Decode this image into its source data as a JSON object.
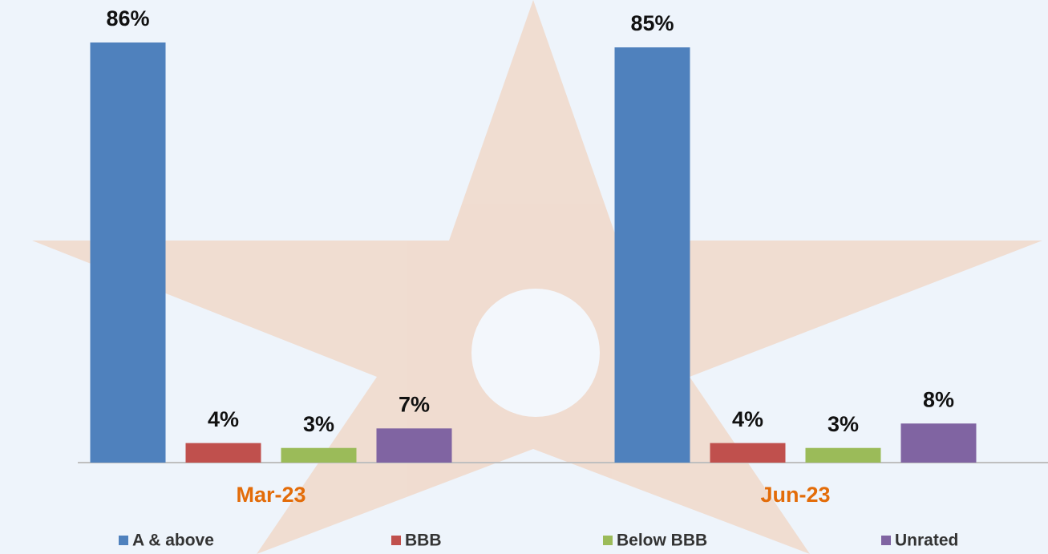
{
  "chart_data": {
    "type": "bar",
    "categories": [
      "Mar-23",
      "Jun-23"
    ],
    "series": [
      {
        "name": "A & above",
        "color": "#4f81bd",
        "values": [
          86,
          85
        ],
        "value_labels": [
          "86%",
          "85%"
        ]
      },
      {
        "name": "BBB",
        "color": "#c0504d",
        "values": [
          4,
          4
        ],
        "value_labels": [
          "4%",
          "4%"
        ]
      },
      {
        "name": "Below BBB",
        "color": "#9bbb59",
        "values": [
          3,
          3
        ],
        "value_labels": [
          "3%",
          "3%"
        ]
      },
      {
        "name": "Unrated",
        "color": "#8064a2",
        "values": [
          7,
          8
        ],
        "value_labels": [
          "7%",
          "8%"
        ]
      }
    ],
    "legend": "bottom"
  }
}
